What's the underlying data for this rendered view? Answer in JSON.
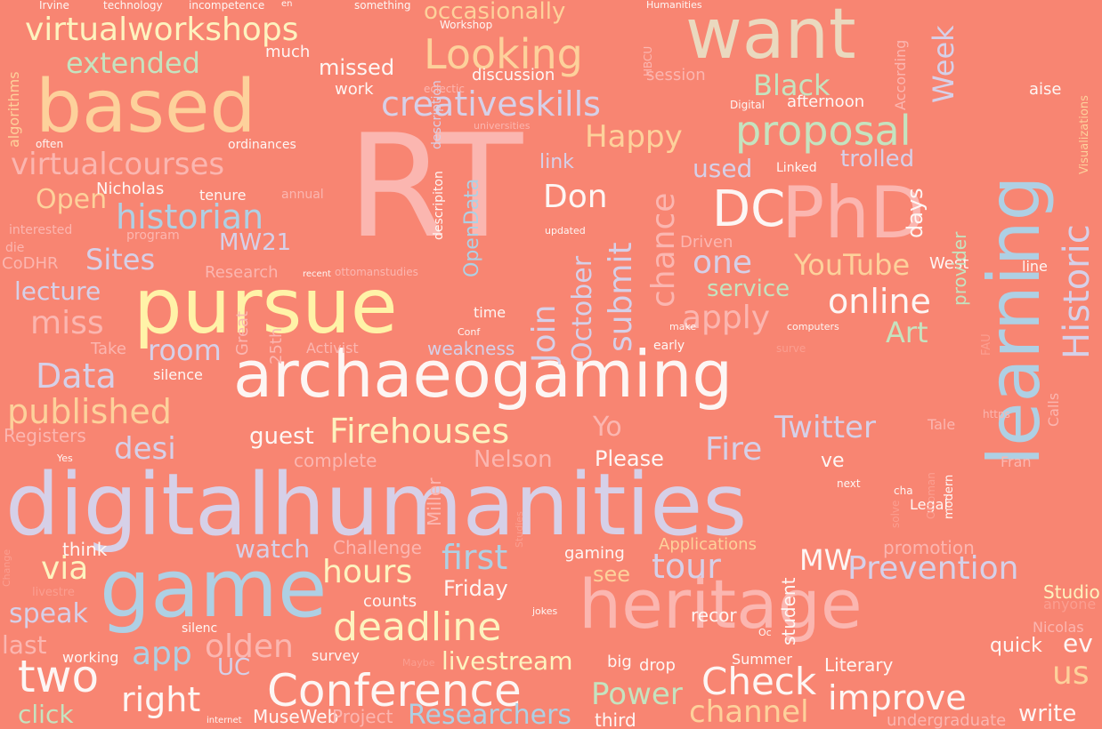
{
  "background_color": "#f88572",
  "palette": {
    "white": "#fdf6f4",
    "cream": "#fdf3bf",
    "pale_yellow": "#fff3a8",
    "light_yellow": "#fce39a",
    "peach": "#fdd19b",
    "tan": "#ead9bf",
    "lavender": "#d6d0e8",
    "light_blue": "#aed0e4",
    "mint": "#c5e3bf",
    "pink": "#fbb6b0",
    "faint": "#fb9e90"
  },
  "words": [
    {
      "text": "digitalhumanities",
      "color": "lavender"
    },
    {
      "text": "archaeogaming",
      "color": "white"
    },
    {
      "text": "heritage",
      "color": "pink"
    },
    {
      "text": "RT",
      "color": "pink"
    },
    {
      "text": "pursue",
      "color": "pale_yellow"
    },
    {
      "text": "game",
      "color": "light_blue"
    },
    {
      "text": "based",
      "color": "peach"
    },
    {
      "text": "want",
      "color": "tan"
    },
    {
      "text": "PhD",
      "color": "pink"
    },
    {
      "text": "learning",
      "color": "light_blue"
    },
    {
      "text": "DC",
      "color": "white"
    },
    {
      "text": "Conference",
      "color": "white"
    },
    {
      "text": "Historic",
      "color": "lavender"
    },
    {
      "text": "virtualworkshops",
      "color": "cream"
    },
    {
      "text": "Looking",
      "color": "peach"
    },
    {
      "text": "creativeskills",
      "color": "lavender"
    },
    {
      "text": "proposal",
      "color": "mint"
    },
    {
      "text": "Black",
      "color": "mint"
    },
    {
      "text": "Happy",
      "color": "peach"
    },
    {
      "text": "Week",
      "color": "lavender"
    },
    {
      "text": "extended",
      "color": "mint"
    },
    {
      "text": "virtualcourses",
      "color": "pink"
    },
    {
      "text": "historian",
      "color": "light_blue"
    },
    {
      "text": "MW21",
      "color": "lavender"
    },
    {
      "text": "Sites",
      "color": "lavender"
    },
    {
      "text": "Open",
      "color": "peach"
    },
    {
      "text": "Don",
      "color": "white"
    },
    {
      "text": "one",
      "color": "lavender"
    },
    {
      "text": "chance",
      "color": "pink"
    },
    {
      "text": "submit",
      "color": "lavender"
    },
    {
      "text": "October",
      "color": "lavender"
    },
    {
      "text": "Join",
      "color": "lavender"
    },
    {
      "text": "YouTube",
      "color": "peach"
    },
    {
      "text": "online",
      "color": "white"
    },
    {
      "text": "apply",
      "color": "pink"
    },
    {
      "text": "Art",
      "color": "mint"
    },
    {
      "text": "service",
      "color": "mint"
    },
    {
      "text": "miss",
      "color": "pink"
    },
    {
      "text": "lecture",
      "color": "lavender"
    },
    {
      "text": "room",
      "color": "lavender"
    },
    {
      "text": "Data",
      "color": "lavender"
    },
    {
      "text": "published",
      "color": "peach"
    },
    {
      "text": "Firehouses",
      "color": "cream"
    },
    {
      "text": "Twitter",
      "color": "lavender"
    },
    {
      "text": "Fire",
      "color": "lavender"
    },
    {
      "text": "Yo",
      "color": "pink"
    },
    {
      "text": "desi",
      "color": "lavender"
    },
    {
      "text": "guest",
      "color": "white"
    },
    {
      "text": "first",
      "color": "light_blue"
    },
    {
      "text": "tour",
      "color": "lavender"
    },
    {
      "text": "MW",
      "color": "white"
    },
    {
      "text": "Prevention",
      "color": "lavender"
    },
    {
      "text": "via",
      "color": "cream"
    },
    {
      "text": "watch",
      "color": "lavender"
    },
    {
      "text": "hours",
      "color": "cream"
    },
    {
      "text": "deadline",
      "color": "cream"
    },
    {
      "text": "app",
      "color": "light_blue"
    },
    {
      "text": "olden",
      "color": "pink"
    },
    {
      "text": "two",
      "color": "white"
    },
    {
      "text": "right",
      "color": "white"
    },
    {
      "text": "livestream",
      "color": "cream"
    },
    {
      "text": "Check",
      "color": "white"
    },
    {
      "text": "Power",
      "color": "mint"
    },
    {
      "text": "improve",
      "color": "white"
    },
    {
      "text": "channel",
      "color": "peach"
    },
    {
      "text": "us",
      "color": "peach"
    },
    {
      "text": "write",
      "color": "white"
    },
    {
      "text": "speak",
      "color": "lavender"
    },
    {
      "text": "last",
      "color": "pink"
    },
    {
      "text": "click",
      "color": "mint"
    },
    {
      "text": "UC",
      "color": "lavender"
    },
    {
      "text": "MuseWeb",
      "color": "white"
    },
    {
      "text": "Project",
      "color": "pink"
    },
    {
      "text": "Researchers",
      "color": "light_blue"
    },
    {
      "text": "third",
      "color": "white"
    },
    {
      "text": "undergraduate",
      "color": "pink"
    },
    {
      "text": "Literary",
      "color": "white"
    },
    {
      "text": "quick",
      "color": "white"
    },
    {
      "text": "ev",
      "color": "white"
    },
    {
      "text": "Nicolas",
      "color": "pink"
    },
    {
      "text": "Studio",
      "color": "cream"
    },
    {
      "text": "anyone",
      "color": "faint"
    },
    {
      "text": "Friday",
      "color": "white"
    },
    {
      "text": "see",
      "color": "peach"
    },
    {
      "text": "counts",
      "color": "white"
    },
    {
      "text": "recor",
      "color": "white"
    },
    {
      "text": "student",
      "color": "white"
    },
    {
      "text": "Summer",
      "color": "white"
    },
    {
      "text": "drop",
      "color": "white"
    },
    {
      "text": "big",
      "color": "white"
    },
    {
      "text": "survey",
      "color": "white"
    },
    {
      "text": "working",
      "color": "white"
    },
    {
      "text": "silenc",
      "color": "white"
    },
    {
      "text": "jokes",
      "color": "white"
    },
    {
      "text": "Maybe",
      "color": "faint"
    },
    {
      "text": "livestre",
      "color": "faint"
    },
    {
      "text": "Challenge",
      "color": "pink"
    },
    {
      "text": "gaming",
      "color": "white"
    },
    {
      "text": "Applications",
      "color": "peach"
    },
    {
      "text": "promotion",
      "color": "pink"
    },
    {
      "text": "think",
      "color": "white"
    },
    {
      "text": "Miller",
      "color": "pink"
    },
    {
      "text": "Legal",
      "color": "white"
    },
    {
      "text": "Ottoman",
      "color": "faint"
    },
    {
      "text": "modern",
      "color": "white"
    },
    {
      "text": "solve",
      "color": "faint"
    },
    {
      "text": "next",
      "color": "white"
    },
    {
      "text": "cha",
      "color": "white"
    },
    {
      "text": "Fran",
      "color": "pink"
    },
    {
      "text": "ve",
      "color": "white"
    },
    {
      "text": "Please",
      "color": "white"
    },
    {
      "text": "Nelson",
      "color": "pink"
    },
    {
      "text": "complete",
      "color": "pink"
    },
    {
      "text": "Registers",
      "color": "pink"
    },
    {
      "text": "Yes",
      "color": "white"
    },
    {
      "text": "Tale",
      "color": "pink"
    },
    {
      "text": "https",
      "color": "pink"
    },
    {
      "text": "Calls",
      "color": "pink"
    },
    {
      "text": "weakness",
      "color": "lavender"
    },
    {
      "text": "Activist",
      "color": "pink"
    },
    {
      "text": "silence",
      "color": "white"
    },
    {
      "text": "Take",
      "color": "pink"
    },
    {
      "text": "Great",
      "color": "pink"
    },
    {
      "text": "25th",
      "color": "pink"
    },
    {
      "text": "Conf",
      "color": "white"
    },
    {
      "text": "early",
      "color": "white"
    },
    {
      "text": "time",
      "color": "white"
    },
    {
      "text": "make",
      "color": "white"
    },
    {
      "text": "computers",
      "color": "white"
    },
    {
      "text": "surve",
      "color": "faint"
    },
    {
      "text": "FAU",
      "color": "faint"
    },
    {
      "text": "Driven",
      "color": "pink"
    },
    {
      "text": "West",
      "color": "white"
    },
    {
      "text": "line",
      "color": "white"
    },
    {
      "text": "Research",
      "color": "pink"
    },
    {
      "text": "ottomanstudies",
      "color": "pink"
    },
    {
      "text": "recent",
      "color": "white"
    },
    {
      "text": "CoDHR",
      "color": "pink"
    },
    {
      "text": "die",
      "color": "pink"
    },
    {
      "text": "program",
      "color": "pink"
    },
    {
      "text": "interested",
      "color": "pink"
    },
    {
      "text": "Nicholas",
      "color": "white"
    },
    {
      "text": "tenure",
      "color": "white"
    },
    {
      "text": "annual",
      "color": "pink"
    },
    {
      "text": "descripiton",
      "color": "white"
    },
    {
      "text": "OpenData",
      "color": "light_blue"
    },
    {
      "text": "description",
      "color": "lavender"
    },
    {
      "text": "updated",
      "color": "white"
    },
    {
      "text": "link",
      "color": "lavender"
    },
    {
      "text": "used",
      "color": "lavender"
    },
    {
      "text": "days",
      "color": "white"
    },
    {
      "text": "trolled",
      "color": "lavender"
    },
    {
      "text": "Linked",
      "color": "white"
    },
    {
      "text": "Digital",
      "color": "white"
    },
    {
      "text": "afternoon",
      "color": "white"
    },
    {
      "text": "provider",
      "color": "mint"
    },
    {
      "text": "According",
      "color": "pink"
    },
    {
      "text": "aise",
      "color": "white"
    },
    {
      "text": "Visualizations",
      "color": "peach"
    },
    {
      "text": "HBCU",
      "color": "pink"
    },
    {
      "text": "session",
      "color": "pink"
    },
    {
      "text": "discussion",
      "color": "white"
    },
    {
      "text": "eclectic",
      "color": "pink"
    },
    {
      "text": "universities",
      "color": "pink"
    },
    {
      "text": "missed",
      "color": "white"
    },
    {
      "text": "work",
      "color": "white"
    },
    {
      "text": "much",
      "color": "white"
    },
    {
      "text": "occasionally",
      "color": "peach"
    },
    {
      "text": "Workshop",
      "color": "white"
    },
    {
      "text": "something",
      "color": "white"
    },
    {
      "text": "Humanities",
      "color": "white"
    },
    {
      "text": "incompetence",
      "color": "white"
    },
    {
      "text": "technology",
      "color": "white"
    },
    {
      "text": "Irvine",
      "color": "white"
    },
    {
      "text": "algorithms",
      "color": "peach"
    },
    {
      "text": "often",
      "color": "white"
    },
    {
      "text": "ordinances",
      "color": "white"
    },
    {
      "text": "Studies",
      "color": "faint"
    },
    {
      "text": "internet",
      "color": "white"
    },
    {
      "text": "Change",
      "color": "faint"
    },
    {
      "text": "Oc",
      "color": "white"
    },
    {
      "text": "en",
      "color": "white"
    }
  ]
}
